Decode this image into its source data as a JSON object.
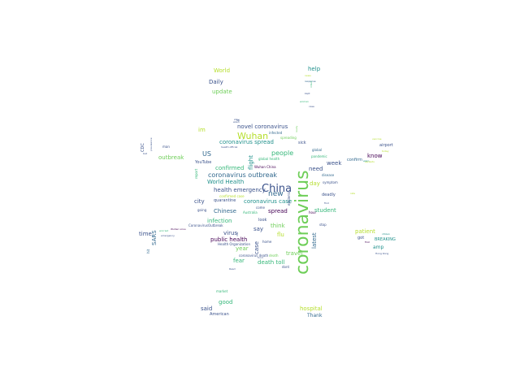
{
  "palette": {
    "dark_purple": "#440154",
    "indigo": "#3b528b",
    "blue": "#31688e",
    "teal": "#21918c",
    "green": "#35b779",
    "lime": "#6ece58",
    "yellow_green": "#b5de2b",
    "yellow": "#fde725"
  },
  "words": [
    {
      "text": "coronavirus",
      "color": "#6ece58",
      "vertical": true
    },
    {
      "text": "China",
      "color": "#3b528b"
    },
    {
      "text": "Wuhan",
      "color": "#b5de2b"
    },
    {
      "text": "new",
      "color": "#31688e"
    },
    {
      "text": "coronavirus outbreak",
      "color": "#31688e"
    },
    {
      "text": "people",
      "color": "#35b779"
    },
    {
      "text": "novel coronavirus",
      "color": "#3b528b"
    },
    {
      "text": "coronavirus spread",
      "color": "#21918c"
    },
    {
      "text": "coronavirus case",
      "color": "#21918c"
    },
    {
      "text": "health emergency",
      "color": "#3b528b"
    },
    {
      "text": "World Health",
      "color": "#21918c"
    },
    {
      "text": "confirmed",
      "color": "#35b779"
    },
    {
      "text": "US",
      "color": "#31688e"
    },
    {
      "text": "outbreak",
      "color": "#6ece58"
    },
    {
      "text": "im",
      "color": "#b5de2b"
    },
    {
      "text": "flight",
      "color": "#21918c",
      "vertical": true
    },
    {
      "text": "city",
      "color": "#3b528b"
    },
    {
      "text": "Chinese",
      "color": "#31688e"
    },
    {
      "text": "spread",
      "color": "#440154"
    },
    {
      "text": "infection",
      "color": "#35b779"
    },
    {
      "text": "virus",
      "color": "#3b528b"
    },
    {
      "text": "public health",
      "color": "#440154"
    },
    {
      "text": "say",
      "color": "#3b528b"
    },
    {
      "text": "think",
      "color": "#6ece58"
    },
    {
      "text": "flu",
      "color": "#b5de2b"
    },
    {
      "text": "travel",
      "color": "#6ece58"
    },
    {
      "text": "death toll",
      "color": "#35b779"
    },
    {
      "text": "fear",
      "color": "#35b779"
    },
    {
      "text": "year",
      "color": "#6ece58"
    },
    {
      "text": "case",
      "color": "#3b528b",
      "vertical": true
    },
    {
      "text": "time",
      "color": "#3b528b"
    },
    {
      "text": "SARS",
      "color": "#31688e",
      "vertical": true
    },
    {
      "text": "need",
      "color": "#3b528b"
    },
    {
      "text": "week",
      "color": "#3b528b"
    },
    {
      "text": "day",
      "color": "#b5de2b"
    },
    {
      "text": "deadly",
      "color": "#3b528b"
    },
    {
      "text": "student",
      "color": "#35b779"
    },
    {
      "text": "latest",
      "color": "#31688e",
      "vertical": true
    },
    {
      "text": "patient",
      "color": "#b5de2b"
    },
    {
      "text": "amp",
      "color": "#21918c"
    },
    {
      "text": "know",
      "color": "#440154"
    },
    {
      "text": "confirm",
      "color": "#31688e"
    },
    {
      "text": "help",
      "color": "#21918c"
    },
    {
      "text": "World",
      "color": "#b5de2b"
    },
    {
      "text": "Daily",
      "color": "#3b528b"
    },
    {
      "text": "update",
      "color": "#6ece58"
    },
    {
      "text": "good",
      "color": "#35b779"
    },
    {
      "text": "said",
      "color": "#3b528b"
    },
    {
      "text": "hospital",
      "color": "#b5de2b"
    },
    {
      "text": "Thank",
      "color": "#31688e"
    },
    {
      "text": "American",
      "color": "#3b528b"
    },
    {
      "text": "man",
      "color": "#3b528b"
    },
    {
      "text": "CDC",
      "color": "#3b528b",
      "vertical": true
    },
    {
      "text": "YouTube",
      "color": "#3b528b"
    },
    {
      "text": "quarantine",
      "color": "#3b528b"
    },
    {
      "text": "sick",
      "color": "#3b528b"
    },
    {
      "text": "infected",
      "color": "#31688e"
    },
    {
      "text": "spreading",
      "color": "#6ece58"
    },
    {
      "text": "global health",
      "color": "#35b779"
    },
    {
      "text": "Wuhan China",
      "color": "#440154"
    },
    {
      "text": "look",
      "color": "#3b528b"
    },
    {
      "text": "come",
      "color": "#3b528b"
    },
    {
      "text": "Australia",
      "color": "#35b779"
    },
    {
      "text": "going",
      "color": "#3b528b"
    },
    {
      "text": "confirmed case",
      "color": "#b5de2b"
    },
    {
      "text": "airport",
      "color": "#3b528b"
    },
    {
      "text": "BREAKING",
      "color": "#21918c"
    },
    {
      "text": "got",
      "color": "#3b528b"
    },
    {
      "text": "home",
      "color": "#3b528b"
    },
    {
      "text": "coronavirus death",
      "color": "#3b528b"
    },
    {
      "text": "Health Organization",
      "color": "#3b528b"
    },
    {
      "text": "CoronavirusOutbreak",
      "color": "#3b528b"
    },
    {
      "text": "market",
      "color": "#35b779"
    },
    {
      "text": "report",
      "color": "#35b779",
      "vertical": true
    },
    {
      "text": "pandemic",
      "color": "#35b779"
    },
    {
      "text": "global",
      "color": "#31688e"
    },
    {
      "text": "symptom",
      "color": "#3b528b"
    },
    {
      "text": "disease",
      "color": "#31688e"
    },
    {
      "text": "stop",
      "color": "#3b528b"
    },
    {
      "text": "response",
      "color": "#31688e"
    },
    {
      "text": "hour",
      "color": "#440154"
    },
    {
      "text": "really",
      "color": "#6ece58",
      "vertical": true
    },
    {
      "text": "emergency",
      "color": "#3b528b"
    },
    {
      "text": "Hong Kong",
      "color": "#3b528b"
    },
    {
      "text": "citizen",
      "color": "#21918c"
    },
    {
      "text": "today",
      "color": "#b5de2b"
    },
    {
      "text": "vaccine",
      "color": "#b5de2b"
    },
    {
      "text": "health official",
      "color": "#3b528b"
    },
    {
      "text": "woman",
      "color": "#35b779"
    },
    {
      "text": "Wuhan virus",
      "color": "#440154"
    },
    {
      "text": "prevalence",
      "color": "#3b528b",
      "vertical": true
    },
    {
      "text": "bat",
      "color": "#3b528b"
    },
    {
      "text": "hit",
      "color": "#31688e",
      "vertical": true
    },
    {
      "text": "death",
      "color": "#6ece58"
    },
    {
      "text": "first",
      "color": "#440154"
    },
    {
      "text": "food",
      "color": "#3b528b"
    },
    {
      "text": "dont",
      "color": "#3b528b"
    },
    {
      "text": "risk",
      "color": "#3b528b",
      "vertical": true
    },
    {
      "text": "epidemic",
      "color": "#3b528b",
      "vertical": true
    },
    {
      "text": "infect",
      "color": "#35b779",
      "vertical": true
    },
    {
      "text": "spreads",
      "color": "#b5de2b"
    },
    {
      "text": "news",
      "color": "#b5de2b"
    },
    {
      "text": "kept",
      "color": "#3b528b"
    },
    {
      "text": "case",
      "color": "#3b528b"
    },
    {
      "text": "find",
      "color": "#3b528b"
    },
    {
      "text": "Read",
      "color": "#3b528b"
    },
    {
      "text": "warn",
      "color": "#21918c"
    },
    {
      "text": "lot",
      "color": "#3b528b"
    },
    {
      "text": "wash",
      "color": "#3b528b"
    },
    {
      "text": "stay",
      "color": "#3b528b"
    },
    {
      "text": "rate",
      "color": "#b5de2b"
    },
    {
      "text": "worried",
      "color": "#35b779"
    }
  ]
}
